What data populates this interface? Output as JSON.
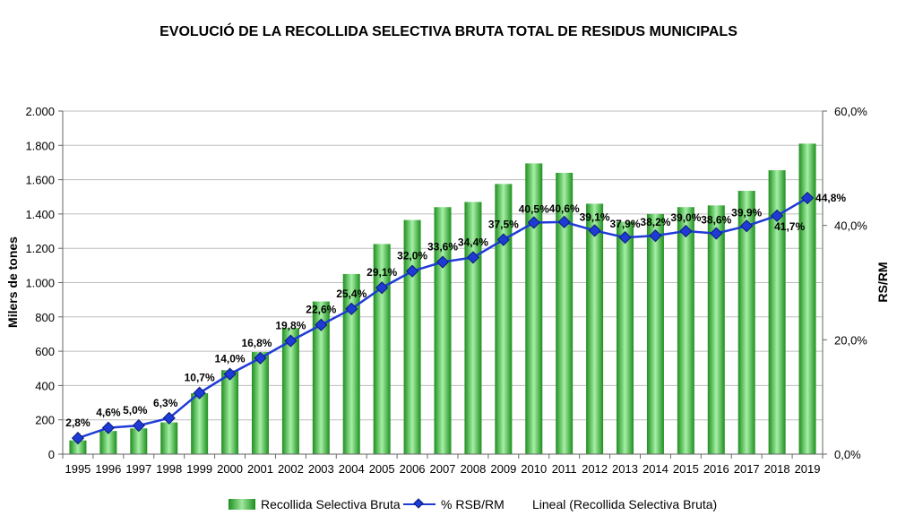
{
  "chart_data": {
    "type": "bar+line",
    "title": "EVOLUCIÓ DE LA RECOLLIDA SELECTIVA BRUTA TOTAL DE RESIDUS MUNICIPALS",
    "ylabel_left": "Milers de tones",
    "ylabel_right": "RS/RM",
    "categories": [
      "1995",
      "1996",
      "1997",
      "1998",
      "1999",
      "2000",
      "2001",
      "2002",
      "2003",
      "2004",
      "2005",
      "2006",
      "2007",
      "2008",
      "2009",
      "2010",
      "2011",
      "2012",
      "2013",
      "2014",
      "2015",
      "2016",
      "2017",
      "2018",
      "2019"
    ],
    "left_axis": {
      "ylim": [
        0,
        2000
      ],
      "ticks": [
        0,
        200,
        400,
        600,
        800,
        1000,
        1200,
        1400,
        1600,
        1800,
        2000
      ],
      "tick_labels": [
        "0",
        "200",
        "400",
        "600",
        "800",
        "1.000",
        "1.200",
        "1.400",
        "1.600",
        "1.800",
        "2.000"
      ]
    },
    "right_axis": {
      "ylim": [
        0,
        60
      ],
      "ticks": [
        0,
        20,
        40,
        60
      ],
      "tick_labels": [
        "0,0%",
        "20,0%",
        "40,0%",
        "60,0%"
      ]
    },
    "series": [
      {
        "name": "Recollida Selectiva Bruta",
        "type": "bar",
        "axis": "left",
        "values": [
          80,
          135,
          150,
          185,
          355,
          490,
          595,
          735,
          890,
          1050,
          1225,
          1365,
          1440,
          1470,
          1575,
          1695,
          1640,
          1460,
          1355,
          1400,
          1440,
          1450,
          1535,
          1655,
          1810
        ]
      },
      {
        "name": "% RSB/RM",
        "type": "line",
        "axis": "right",
        "values": [
          2.8,
          4.6,
          5.0,
          6.3,
          10.7,
          14.0,
          16.8,
          19.8,
          22.6,
          25.4,
          29.1,
          32.0,
          33.6,
          34.4,
          37.5,
          40.5,
          40.6,
          39.1,
          37.9,
          38.2,
          39.0,
          38.6,
          39.9,
          41.7,
          44.8
        ],
        "labels": [
          "2,8%",
          "4,6%",
          "5,0%",
          "6,3%",
          "10,7%",
          "14,0%",
          "16,8%",
          "19,8%",
          "22,6%",
          "25,4%",
          "29,1%",
          "32,0%",
          "33,6%",
          "34,4%",
          "37,5%",
          "40,5%",
          "40,6%",
          "39,1%",
          "37,9%",
          "38,2%",
          "39,0%",
          "38,6%",
          "39,9%",
          "41,7%",
          "44,8%"
        ]
      }
    ],
    "legend": [
      "Recollida Selectiva Bruta",
      "% RSB/RM",
      "Lineal (Recollida Selectiva Bruta)"
    ],
    "legend_position": "bottom",
    "grid": true
  },
  "colors": {
    "bar_dark": "#1e8f1e",
    "bar_light": "#a6f0a6",
    "line": "#1f3bd6",
    "marker_border": "#0a1a78",
    "grid": "#bdbdbd"
  }
}
